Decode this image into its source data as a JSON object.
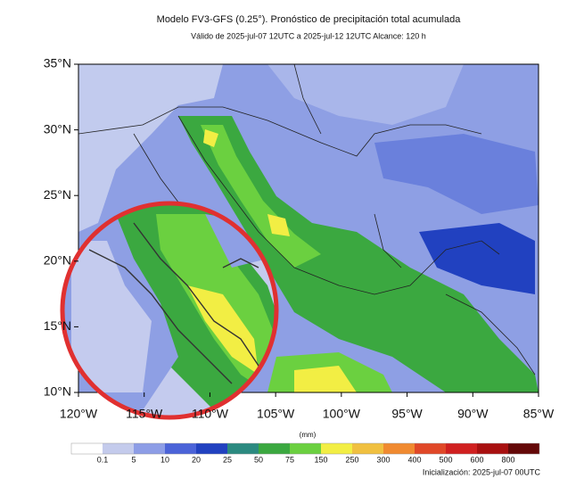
{
  "header": {
    "title": "Modelo FV3-GFS (0.25°). Pronóstico de precipitación total acumulada",
    "subtitle": "Válido de 2025-jul-07 12UTC a 2025-jul-12 12UTC    Alcance: 120 h"
  },
  "map": {
    "lat_labels": [
      "35°N",
      "30°N",
      "25°N",
      "20°N",
      "15°N",
      "10°N"
    ],
    "lon_labels": [
      "120°W",
      "115°W",
      "110°W",
      "105°W",
      "100°W",
      "95°W",
      "90°W",
      "85°W"
    ]
  },
  "colorbar": {
    "unit": "(mm)",
    "labels": [
      0.1,
      5,
      10,
      20,
      25,
      50,
      75,
      150,
      250,
      300,
      400,
      500,
      600,
      800
    ],
    "colors": [
      "#ffffff",
      "#c4cbec",
      "#8d9de6",
      "#4b63d8",
      "#2141c0",
      "#2b8a80",
      "#3ba840",
      "#6bd040",
      "#f2ee44",
      "#f0c040",
      "#f08a30",
      "#e04828",
      "#d02020",
      "#a81010",
      "#640808"
    ]
  },
  "footer": "Inicialización: 2025-jul-07 00UTC"
}
